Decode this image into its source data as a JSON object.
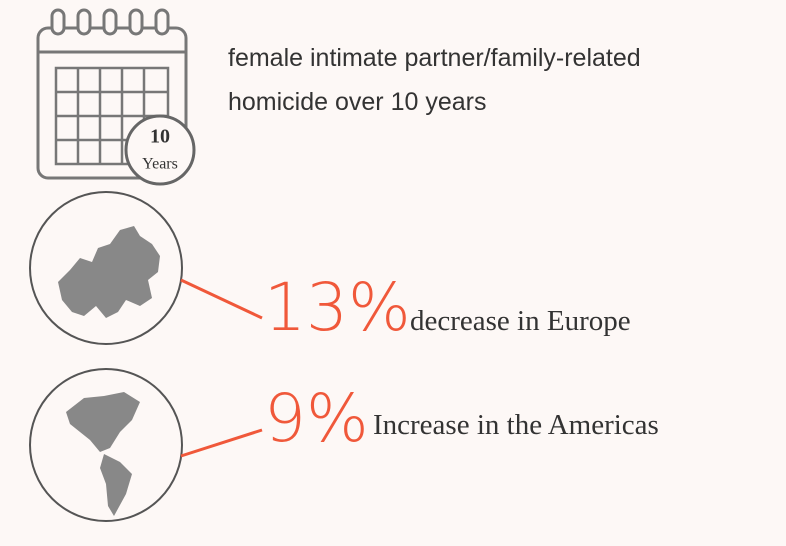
{
  "header": {
    "text_line1": "female intimate partner/family-related",
    "text_line2": "homicide over 10 years",
    "badge_number": "10",
    "badge_unit": "Years"
  },
  "stats": [
    {
      "figure": "13%",
      "label": "decrease in Europe"
    },
    {
      "figure": "9%",
      "label": "Increase in the Americas"
    }
  ]
}
